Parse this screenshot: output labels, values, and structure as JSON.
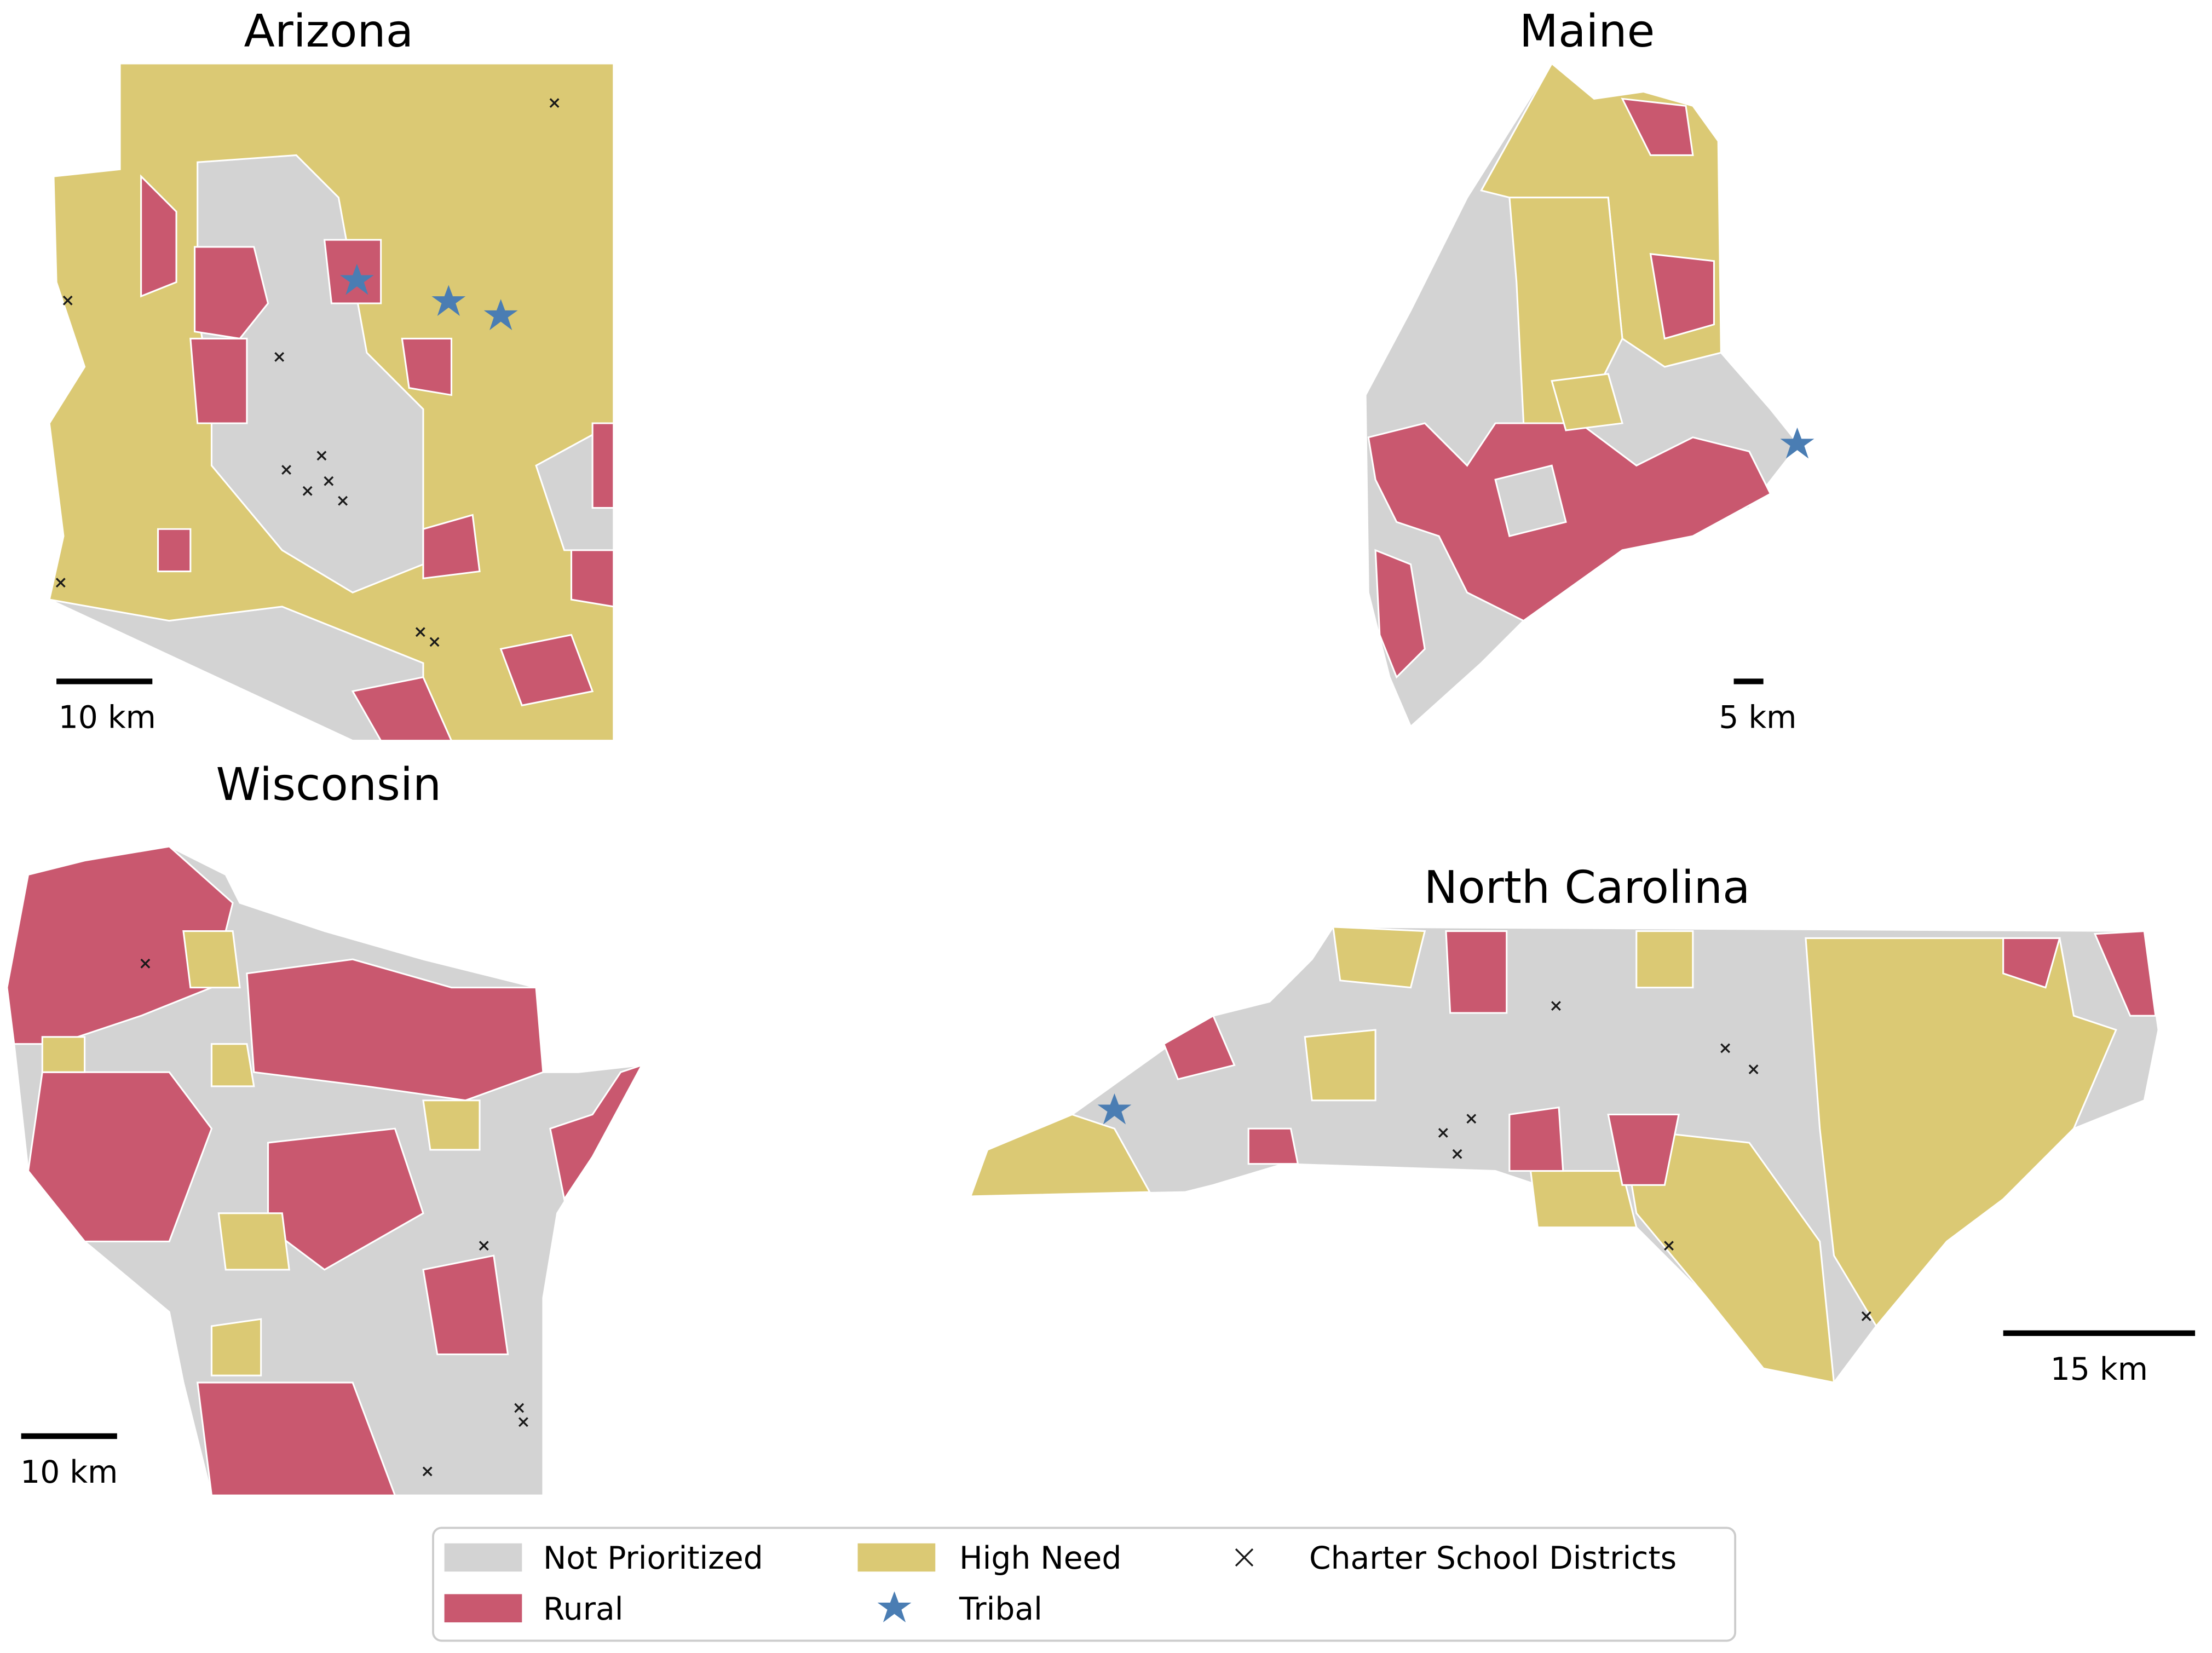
{
  "maps": [
    {
      "title": "Arizona",
      "scale_label": "10 km"
    },
    {
      "title": "Maine",
      "scale_label": "5 km"
    },
    {
      "title": "Wisconsin",
      "scale_label": "10 km"
    },
    {
      "title": "North Carolina",
      "scale_label": "15 km"
    }
  ],
  "legend": {
    "items": [
      {
        "label": "Not Prioritized",
        "color": "#d3d3d3"
      },
      {
        "label": "Rural",
        "color": "#c9586f"
      },
      {
        "label": "High Need",
        "color": "#dbc974"
      },
      {
        "label": "Tribal",
        "color": "#4a7db3"
      },
      {
        "label": "Charter School Districts",
        "color": "#1a1a1a"
      }
    ]
  }
}
